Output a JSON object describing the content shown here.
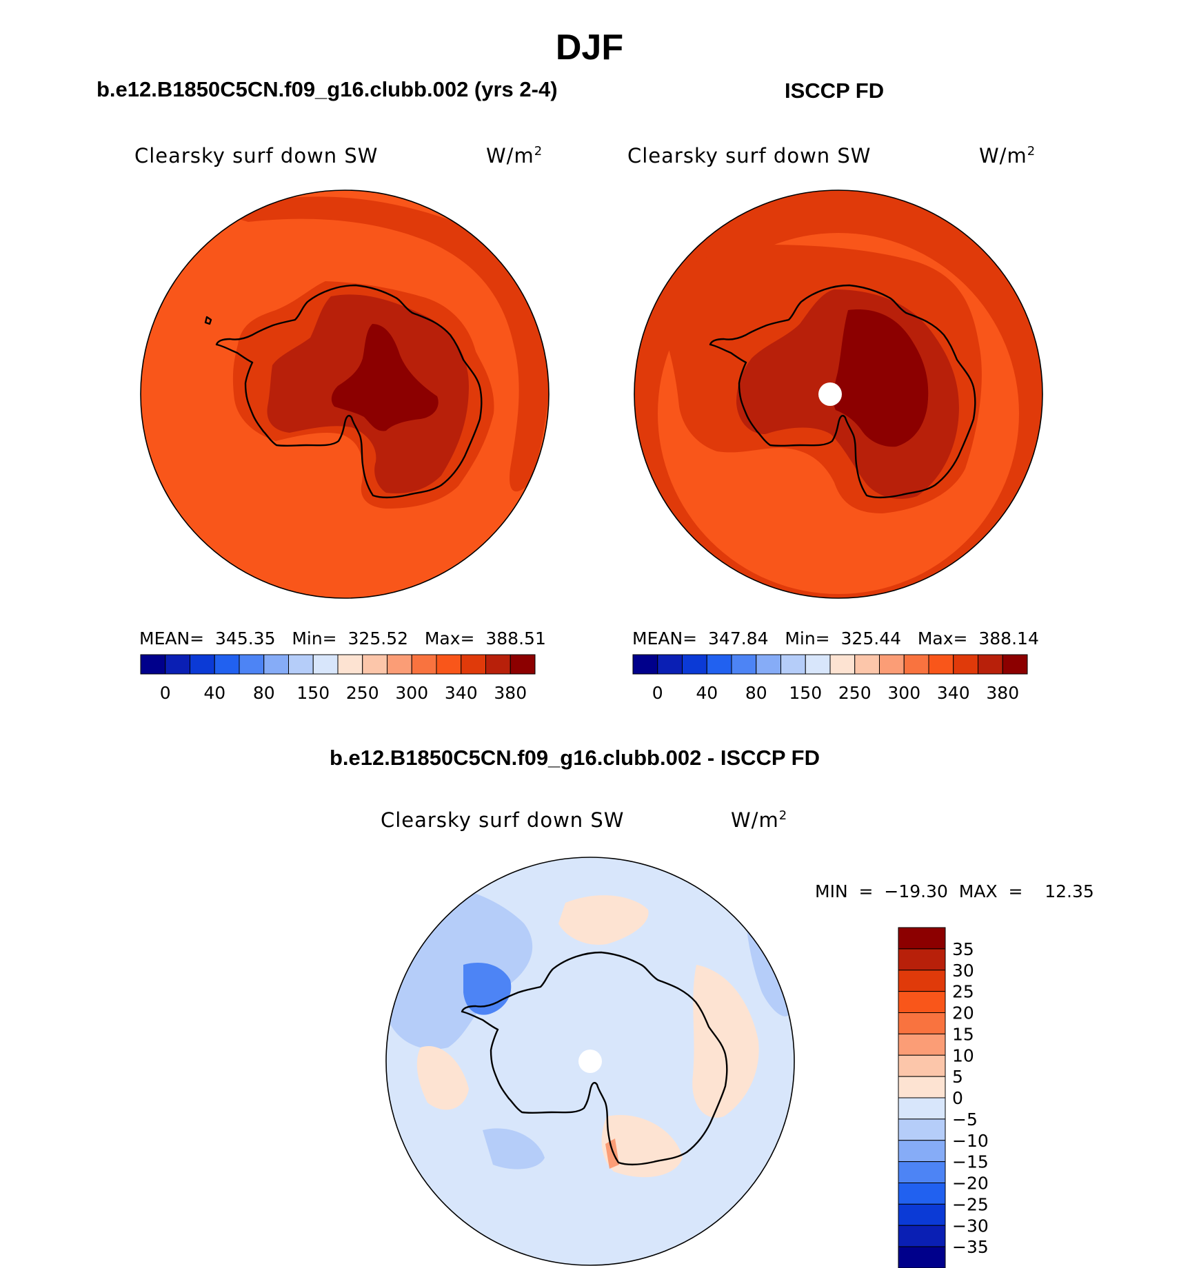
{
  "figure": {
    "season": "DJF",
    "model_title": "b.e12.B1850C5CN.f09_g16.clubb.002 (yrs 2-4)",
    "obs_title": "ISCCP FD",
    "diff_title": "b.e12.B1850C5CN.f09_g16.clubb.002 - ISCCP FD"
  },
  "panels": [
    {
      "id": "model",
      "variable": "Clearsky surf down SW",
      "units": "W/m",
      "units_sup": "2",
      "stats": "MEAN=  345.35   Min=  325.52   Max=  388.51",
      "colorbar_ticks": [
        "0",
        "40",
        "80",
        "150",
        "250",
        "300",
        "340",
        "380"
      ]
    },
    {
      "id": "obs",
      "variable": "Clearsky surf down SW",
      "units": "W/m",
      "units_sup": "2",
      "stats": "MEAN=  347.84   Min=  325.44   Max=  388.14",
      "colorbar_ticks": [
        "0",
        "40",
        "80",
        "150",
        "250",
        "300",
        "340",
        "380"
      ]
    },
    {
      "id": "diff",
      "variable": "Clearsky surf down SW",
      "units": "W/m",
      "units_sup": "2",
      "stats": "MIN  =  −19.30  MAX  =    12.35",
      "colorbar_ticks": [
        "35",
        "30",
        "25",
        "20",
        "15",
        "10",
        "5",
        "0",
        "−5",
        "−10",
        "−15",
        "−20",
        "−25",
        "−30",
        "−35"
      ]
    }
  ],
  "colors": {
    "abs_scale": [
      "#00008b",
      "#0a1fb4",
      "#0b3ad6",
      "#2161f0",
      "#4d84f5",
      "#86acf7",
      "#b5cdf9",
      "#d8e6fb",
      "#fde3d2",
      "#fcc6aa",
      "#fb9d76",
      "#f9733f",
      "#f9561a",
      "#e03a0a",
      "#b8200a",
      "#8c0000"
    ],
    "diff_scale": [
      "#00008b",
      "#0a1fb4",
      "#0b3ad6",
      "#2161f0",
      "#4d84f5",
      "#86acf7",
      "#b5cdf9",
      "#d8e6fb",
      "#fde3d2",
      "#fcc6aa",
      "#fb9d76",
      "#f9733f",
      "#f9561a",
      "#e03a0a",
      "#b8200a",
      "#8c0000"
    ]
  }
}
